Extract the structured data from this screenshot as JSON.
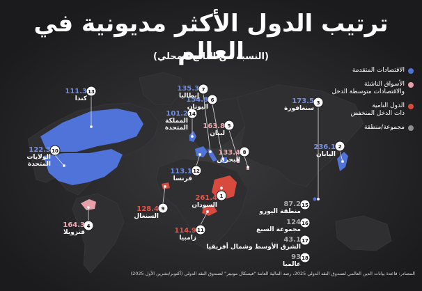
{
  "title": "ترتيب الدول الأكثر مديونية في العالم",
  "subtitle": "(النسبة من الناتج المحلي)",
  "legend": [
    {
      "label": "الاقتصادات المتقدمة",
      "color": "#4f73d8"
    },
    {
      "label": "الأسواق الناشئة\nوالاقتصادات متوسطة الدخل",
      "color": "#e8a0a8"
    },
    {
      "label": "الدول النامية\nذات الدخل المنخفض",
      "color": "#d94a3e"
    },
    {
      "label": "مجموعة/منطقة",
      "color": "#8e8e8e"
    }
  ],
  "chart_data": {
    "type": "map",
    "title": "ترتيب الدول الأكثر مديونية في العالم",
    "subtitle": "(النسبة من الناتج المحلي)",
    "unit": "% of GDP",
    "series": [
      {
        "rank": 1,
        "name": "السودان",
        "value": 261.4,
        "category": "low_income"
      },
      {
        "rank": 2,
        "name": "اليابان",
        "value": 236.1,
        "category": "advanced"
      },
      {
        "rank": 3,
        "name": "سنغافورة",
        "value": 173.5,
        "category": "advanced"
      },
      {
        "rank": 4,
        "name": "فنزويلا",
        "value": 164.3,
        "category": "emerging"
      },
      {
        "rank": 5,
        "name": "لبنان",
        "value": 163.8,
        "category": "emerging"
      },
      {
        "rank": 6,
        "name": "اليونان",
        "value": 154.8,
        "category": "advanced"
      },
      {
        "rank": 7,
        "name": "إيطاليا",
        "value": 135.3,
        "category": "advanced"
      },
      {
        "rank": 8,
        "name": "البحرين",
        "value": 133.4,
        "category": "emerging"
      },
      {
        "rank": 9,
        "name": "السنغال",
        "value": 128.4,
        "category": "low_income"
      },
      {
        "rank": 10,
        "name": "الولايات\nالمتحدة",
        "value": 122.3,
        "category": "advanced"
      },
      {
        "rank": 11,
        "name": "زامبيا",
        "value": 114.9,
        "category": "low_income"
      },
      {
        "rank": 12,
        "name": "فرنسا",
        "value": 113.1,
        "category": "advanced"
      },
      {
        "rank": 13,
        "name": "كندا",
        "value": 111.3,
        "category": "advanced"
      },
      {
        "rank": 14,
        "name": "المملكة\nالمتحدة",
        "value": 101.2,
        "category": "advanced"
      },
      {
        "rank": 15,
        "name": "منطقة اليورو",
        "value": 87.2,
        "category": "group"
      },
      {
        "rank": 16,
        "name": "مجموعة السبع",
        "value": 124,
        "category": "group"
      },
      {
        "rank": 17,
        "name": "الشرق الأوسط وشمال أفريقيا",
        "value": 43.1,
        "category": "group"
      },
      {
        "rank": 18,
        "name": "عالميا",
        "value": 93,
        "category": "group"
      }
    ]
  },
  "source": "المصادر: قاعدة بيانات الدين العالمي لصندوق النقد الدولي 2025، رصد المالية العامة \"فيسكال مونيتر\" لصندوق النقد الدولي (أكتوبر/تشرين الأول 2025)"
}
